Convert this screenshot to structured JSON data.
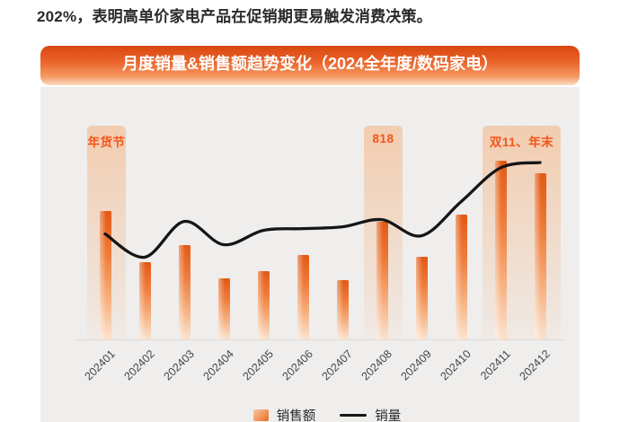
{
  "page": {
    "intro_text": "202%，表明高单价家电产品在促销期更易触发消费决策。"
  },
  "chart_card": {
    "title": "月度销量&销售额趋势变化（2024全年度/数码家电）"
  },
  "legend": {
    "sales_amount_label": "销售额",
    "sales_volume_label": "销量"
  },
  "colors": {
    "banner_top": "#d9470f",
    "banner_bottom": "#fbdec4",
    "panel_bg": "#efeeed",
    "bar_top": "#e25915",
    "bar_bottom": "#fbe3cf",
    "line": "#151515",
    "highlight_band": "#f69e5a",
    "annotation_text": "#f2551b"
  },
  "chart_data": {
    "type": "bar+line",
    "title": "月度销量&销售额趋势变化（2024全年度/数码家电）",
    "categories": [
      "202401",
      "202402",
      "202403",
      "202404",
      "202405",
      "202406",
      "202407",
      "202408",
      "202409",
      "202410",
      "202411",
      "202412"
    ],
    "series": [
      {
        "name": "销售额",
        "type": "bar",
        "values": [
          72,
          43,
          53,
          34,
          38,
          47,
          33,
          66,
          46,
          70,
          100,
          93
        ]
      },
      {
        "name": "销量",
        "type": "line",
        "values": [
          59,
          46,
          66,
          53,
          61,
          62,
          63,
          67,
          58,
          77,
          96,
          99
        ]
      }
    ],
    "ylabel": "",
    "y_axis_shown": false,
    "ylim": [
      0,
      105
    ],
    "value_note": "relative index 0-100, no numeric axis shown in chart",
    "grid": false,
    "legend_position": "bottom-center",
    "annotations": [
      {
        "label": "年货节",
        "start_month": "202401",
        "end_month": "202401"
      },
      {
        "label": "818",
        "start_month": "202408",
        "end_month": "202408"
      },
      {
        "label": "双11、年末",
        "start_month": "202411",
        "end_month": "202412"
      }
    ]
  }
}
